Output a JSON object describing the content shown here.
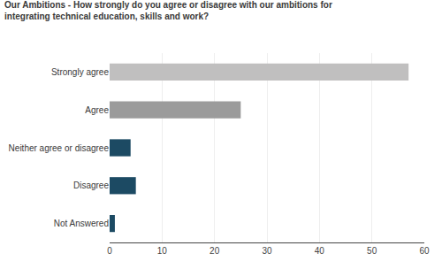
{
  "chart_data": {
    "type": "bar",
    "orientation": "horizontal",
    "title": "Our Ambitions - How strongly do you agree or disagree with our ambitions for",
    "subtitle": "integrating technical education, skills and work?",
    "categories": [
      "Strongly agree",
      "Agree",
      "Neither agree or disagree",
      "Disagree",
      "Not Answered"
    ],
    "values": [
      57,
      25,
      4,
      5,
      1
    ],
    "colors": [
      "#c0bfbf",
      "#9b9b9b",
      "#1c4a63",
      "#1c4a63",
      "#1c4a63"
    ],
    "xlim": [
      0,
      60
    ],
    "xticks": [
      0,
      10,
      20,
      30,
      40,
      50,
      60
    ],
    "grid": true
  }
}
